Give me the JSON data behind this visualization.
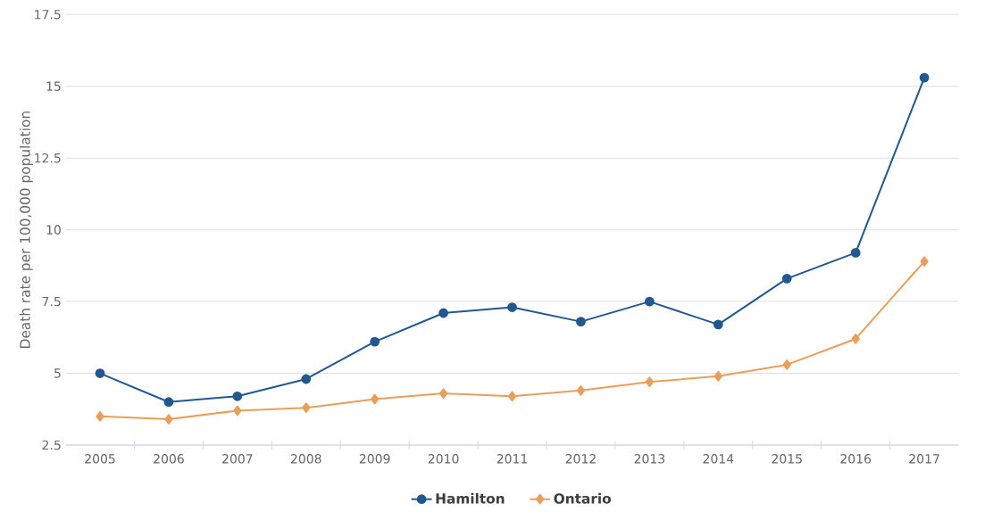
{
  "chart_data": {
    "type": "line",
    "ylabel": "Death rate per 100,000 population",
    "categories": [
      "2005",
      "2006",
      "2007",
      "2008",
      "2009",
      "2010",
      "2011",
      "2012",
      "2013",
      "2014",
      "2015",
      "2016",
      "2017"
    ],
    "series": [
      {
        "name": "Hamilton",
        "color": "#22588f",
        "marker": "circle",
        "values": [
          5.0,
          4.0,
          4.2,
          4.8,
          6.1,
          7.1,
          7.3,
          6.8,
          7.5,
          6.7,
          8.3,
          9.2,
          15.3
        ]
      },
      {
        "name": "Ontario",
        "color": "#eb9e5a",
        "marker": "diamond",
        "values": [
          3.5,
          3.4,
          3.7,
          3.8,
          4.1,
          4.3,
          4.2,
          4.4,
          4.7,
          4.9,
          5.3,
          6.2,
          8.9
        ]
      }
    ],
    "ylim": [
      2.5,
      17.5
    ],
    "yticks": [
      {
        "value": 2.5,
        "label": "2.5"
      },
      5,
      {
        "value": 7.5,
        "label": "7.5"
      },
      10,
      {
        "value": 12.5,
        "label": "12.5"
      },
      15,
      {
        "value": 17.5,
        "label": "17.5"
      }
    ],
    "grid": "y",
    "legend": "bottom",
    "line_style": "solid"
  }
}
